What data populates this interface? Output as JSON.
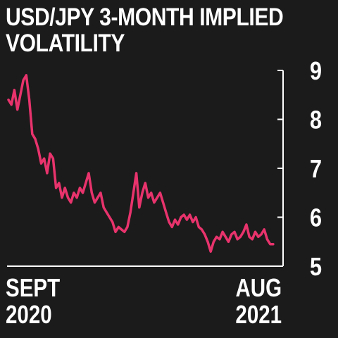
{
  "chart_data": {
    "type": "line",
    "title_line1": "USD/JPY 3-MONTH IMPLIED",
    "title_line2": "VOLATILITY",
    "x_ticks": [
      {
        "line1": "SEPT",
        "line2": "2020"
      },
      {
        "line1": "AUG",
        "line2": "2021"
      }
    ],
    "y_ticks": [
      "9",
      "8",
      "7",
      "6",
      "5"
    ],
    "ylim": [
      5,
      9
    ],
    "xlim": [
      "2020-09-01",
      "2021-08-25"
    ],
    "axis_position": "right",
    "grid": false,
    "colors": {
      "line": "#e8336d",
      "background": "#1b1b1b",
      "axis": "#ffffff",
      "text": "#ffffff"
    },
    "series": [
      {
        "x": [
          "2020-09-01",
          "2020-09-05",
          "2020-09-09",
          "2020-09-13",
          "2020-09-17",
          "2020-09-21",
          "2020-09-25",
          "2020-09-29",
          "2020-10-03",
          "2020-10-07",
          "2020-10-11",
          "2020-10-15",
          "2020-10-19",
          "2020-10-23",
          "2020-10-27",
          "2020-10-31",
          "2020-11-04",
          "2020-11-08",
          "2020-11-12",
          "2020-11-16",
          "2020-11-20",
          "2020-11-24",
          "2020-11-28",
          "2020-12-02",
          "2020-12-06",
          "2020-12-10",
          "2020-12-14",
          "2020-12-18",
          "2020-12-22",
          "2020-12-26",
          "2020-12-30",
          "2021-01-03",
          "2021-01-07",
          "2021-01-11",
          "2021-01-15",
          "2021-01-19",
          "2021-01-23",
          "2021-01-27",
          "2021-01-31",
          "2021-02-04",
          "2021-02-08",
          "2021-02-12",
          "2021-02-16",
          "2021-02-20",
          "2021-02-24",
          "2021-02-28",
          "2021-03-04",
          "2021-03-08",
          "2021-03-12",
          "2021-03-16",
          "2021-03-20",
          "2021-03-24",
          "2021-03-28",
          "2021-04-01",
          "2021-04-05",
          "2021-04-09",
          "2021-04-13",
          "2021-04-17",
          "2021-04-21",
          "2021-04-25",
          "2021-04-29",
          "2021-05-03",
          "2021-05-07",
          "2021-05-11",
          "2021-05-15",
          "2021-05-19",
          "2021-05-23",
          "2021-05-27",
          "2021-05-31",
          "2021-06-04",
          "2021-06-08",
          "2021-06-12",
          "2021-06-16",
          "2021-06-20",
          "2021-06-24",
          "2021-06-28",
          "2021-07-02",
          "2021-07-06",
          "2021-07-10",
          "2021-07-14",
          "2021-07-18",
          "2021-07-22",
          "2021-07-26",
          "2021-07-30",
          "2021-08-03",
          "2021-08-07",
          "2021-08-11",
          "2021-08-15",
          "2021-08-19",
          "2021-08-23"
        ],
        "values": [
          8.4,
          8.3,
          8.6,
          8.2,
          8.5,
          8.8,
          8.9,
          8.4,
          7.7,
          7.6,
          7.4,
          7.1,
          7.2,
          6.9,
          7.3,
          7.2,
          6.6,
          6.7,
          6.4,
          6.6,
          6.4,
          6.3,
          6.5,
          6.4,
          6.6,
          6.5,
          6.7,
          6.9,
          6.5,
          6.3,
          6.4,
          6.5,
          6.2,
          6.1,
          6.0,
          5.9,
          5.7,
          5.8,
          5.75,
          5.7,
          5.8,
          6.1,
          6.5,
          6.9,
          6.2,
          6.5,
          6.7,
          6.4,
          6.5,
          6.3,
          6.4,
          6.5,
          6.3,
          6.1,
          5.9,
          5.8,
          5.95,
          5.85,
          6.0,
          6.05,
          5.95,
          6.05,
          5.9,
          6.0,
          5.8,
          5.75,
          5.65,
          5.5,
          5.3,
          5.5,
          5.6,
          5.55,
          5.7,
          5.6,
          5.5,
          5.65,
          5.7,
          5.55,
          5.6,
          5.7,
          5.85,
          5.6,
          5.55,
          5.7,
          5.6,
          5.65,
          5.75,
          5.55,
          5.45,
          5.45
        ]
      }
    ]
  }
}
